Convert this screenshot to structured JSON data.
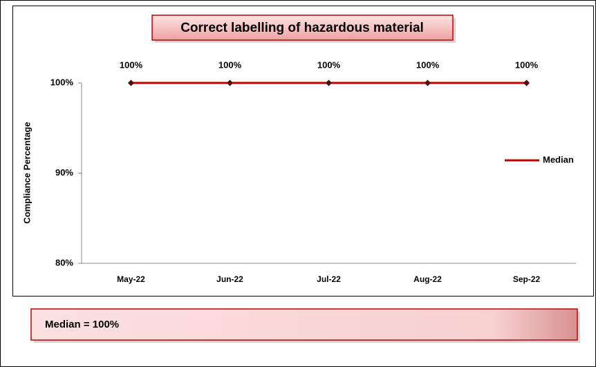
{
  "chart_data": {
    "type": "line",
    "title": "Correct labelling of hazardous material",
    "y_label": "Compliance Percentage",
    "categories": [
      "May-22",
      "Jun-22",
      "Jul-22",
      "Aug-22",
      "Sep-22"
    ],
    "series": [
      {
        "name": "Median",
        "color": "#c00000",
        "values": [
          100,
          100,
          100,
          100,
          100
        ],
        "value_labels": [
          "100%",
          "100%",
          "100%",
          "100%",
          "100%"
        ]
      }
    ],
    "ylim": [
      80,
      100
    ],
    "yticks": [
      {
        "value": 80,
        "label": "80%"
      },
      {
        "value": 90,
        "label": "90%"
      },
      {
        "value": 100,
        "label": "100%"
      }
    ],
    "grid": false,
    "legend": "right",
    "annotation": "Median = 100%"
  }
}
